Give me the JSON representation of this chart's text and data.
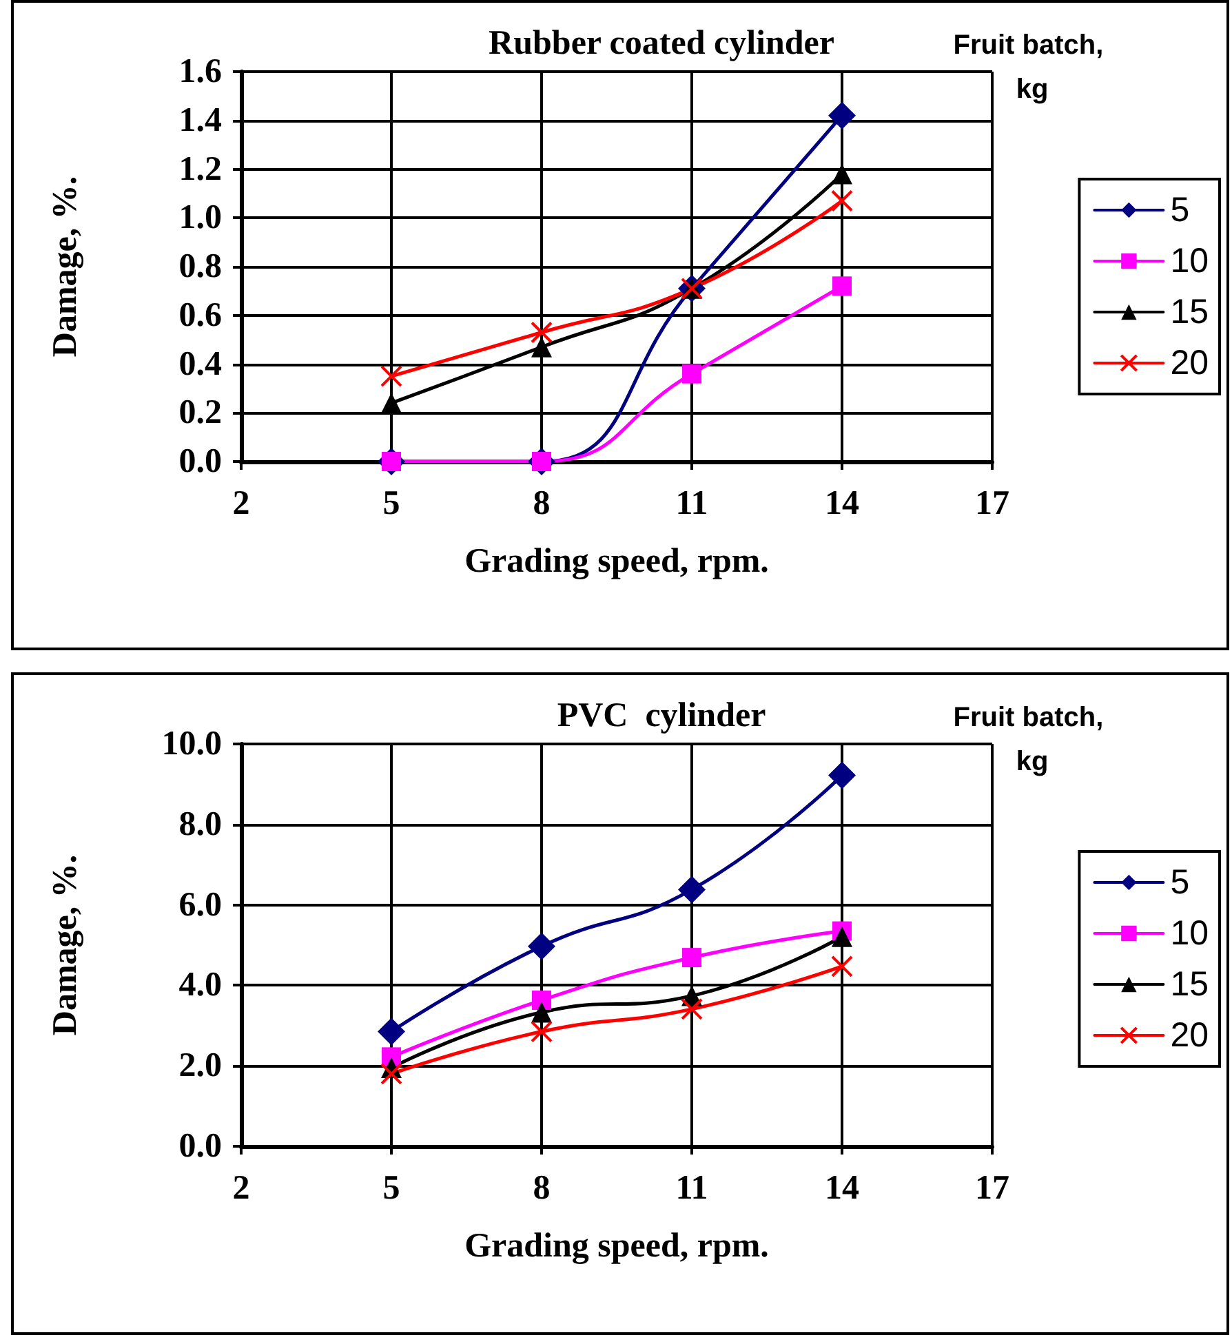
{
  "chart_data": [
    {
      "type": "line",
      "title": "Rubber coated cylinder",
      "xlabel": "Grading speed, rpm.",
      "ylabel": "Damage, %.",
      "legend_title": "Fruit batch, kg",
      "x": [
        5,
        8,
        11,
        14
      ],
      "series": [
        {
          "name": "5",
          "color": "#000080",
          "marker": "diamond",
          "values": [
            0,
            0,
            0.71,
            1.42
          ]
        },
        {
          "name": "10",
          "color": "#ff00ff",
          "marker": "square",
          "values": [
            0,
            0,
            0.36,
            0.72
          ]
        },
        {
          "name": "15",
          "color": "#000000",
          "marker": "triangle",
          "values": [
            0.24,
            0.47,
            0.71,
            1.18
          ]
        },
        {
          "name": "20",
          "color": "#ff0000",
          "marker": "cross",
          "values": [
            0.35,
            0.53,
            0.71,
            1.07
          ]
        }
      ],
      "xlim": [
        2,
        17
      ],
      "xticks": [
        2,
        5,
        8,
        11,
        14,
        17
      ],
      "ylim": [
        0,
        1.6
      ],
      "yticks": [
        {
          "value": 0,
          "label": "0.0"
        },
        {
          "value": 0.2,
          "label": "0.2"
        },
        {
          "value": 0.4,
          "label": "0.4"
        },
        {
          "value": 0.6,
          "label": "0.6"
        },
        {
          "value": 0.8,
          "label": "0.8"
        },
        {
          "value": 1.0,
          "label": "1.0"
        },
        {
          "value": 1.2,
          "label": "1.2"
        },
        {
          "value": 1.4,
          "label": "1.4"
        },
        {
          "value": 1.6,
          "label": "1.6"
        }
      ],
      "grid": true,
      "legend": "right",
      "line_style": "solid"
    },
    {
      "type": "line",
      "title": "PVC  cylinder",
      "xlabel": "Grading speed, rpm.",
      "ylabel": "Damage, %.",
      "legend_title": "Fruit batch, kg",
      "x": [
        5,
        8,
        11,
        14
      ],
      "series": [
        {
          "name": "5",
          "color": "#000080",
          "marker": "diamond",
          "values": [
            2.85,
            4.97,
            6.38,
            9.22
          ]
        },
        {
          "name": "10",
          "color": "#ff00ff",
          "marker": "square",
          "values": [
            2.22,
            3.63,
            4.69,
            5.35
          ]
        },
        {
          "name": "15",
          "color": "#000000",
          "marker": "triangle",
          "values": [
            1.95,
            3.33,
            3.74,
            5.21
          ]
        },
        {
          "name": "20",
          "color": "#ff0000",
          "marker": "cross",
          "values": [
            1.8,
            2.85,
            3.41,
            4.47
          ]
        }
      ],
      "xlim": [
        2,
        17
      ],
      "xticks": [
        2,
        5,
        8,
        11,
        14,
        17
      ],
      "ylim": [
        0,
        10
      ],
      "yticks": [
        {
          "value": 0,
          "label": "0.0"
        },
        {
          "value": 2,
          "label": "2.0"
        },
        {
          "value": 4,
          "label": "4.0"
        },
        {
          "value": 6,
          "label": "6.0"
        },
        {
          "value": 8,
          "label": "8.0"
        },
        {
          "value": 10,
          "label": "10.0"
        }
      ],
      "grid": true,
      "legend": "right",
      "line_style": "solid"
    }
  ]
}
